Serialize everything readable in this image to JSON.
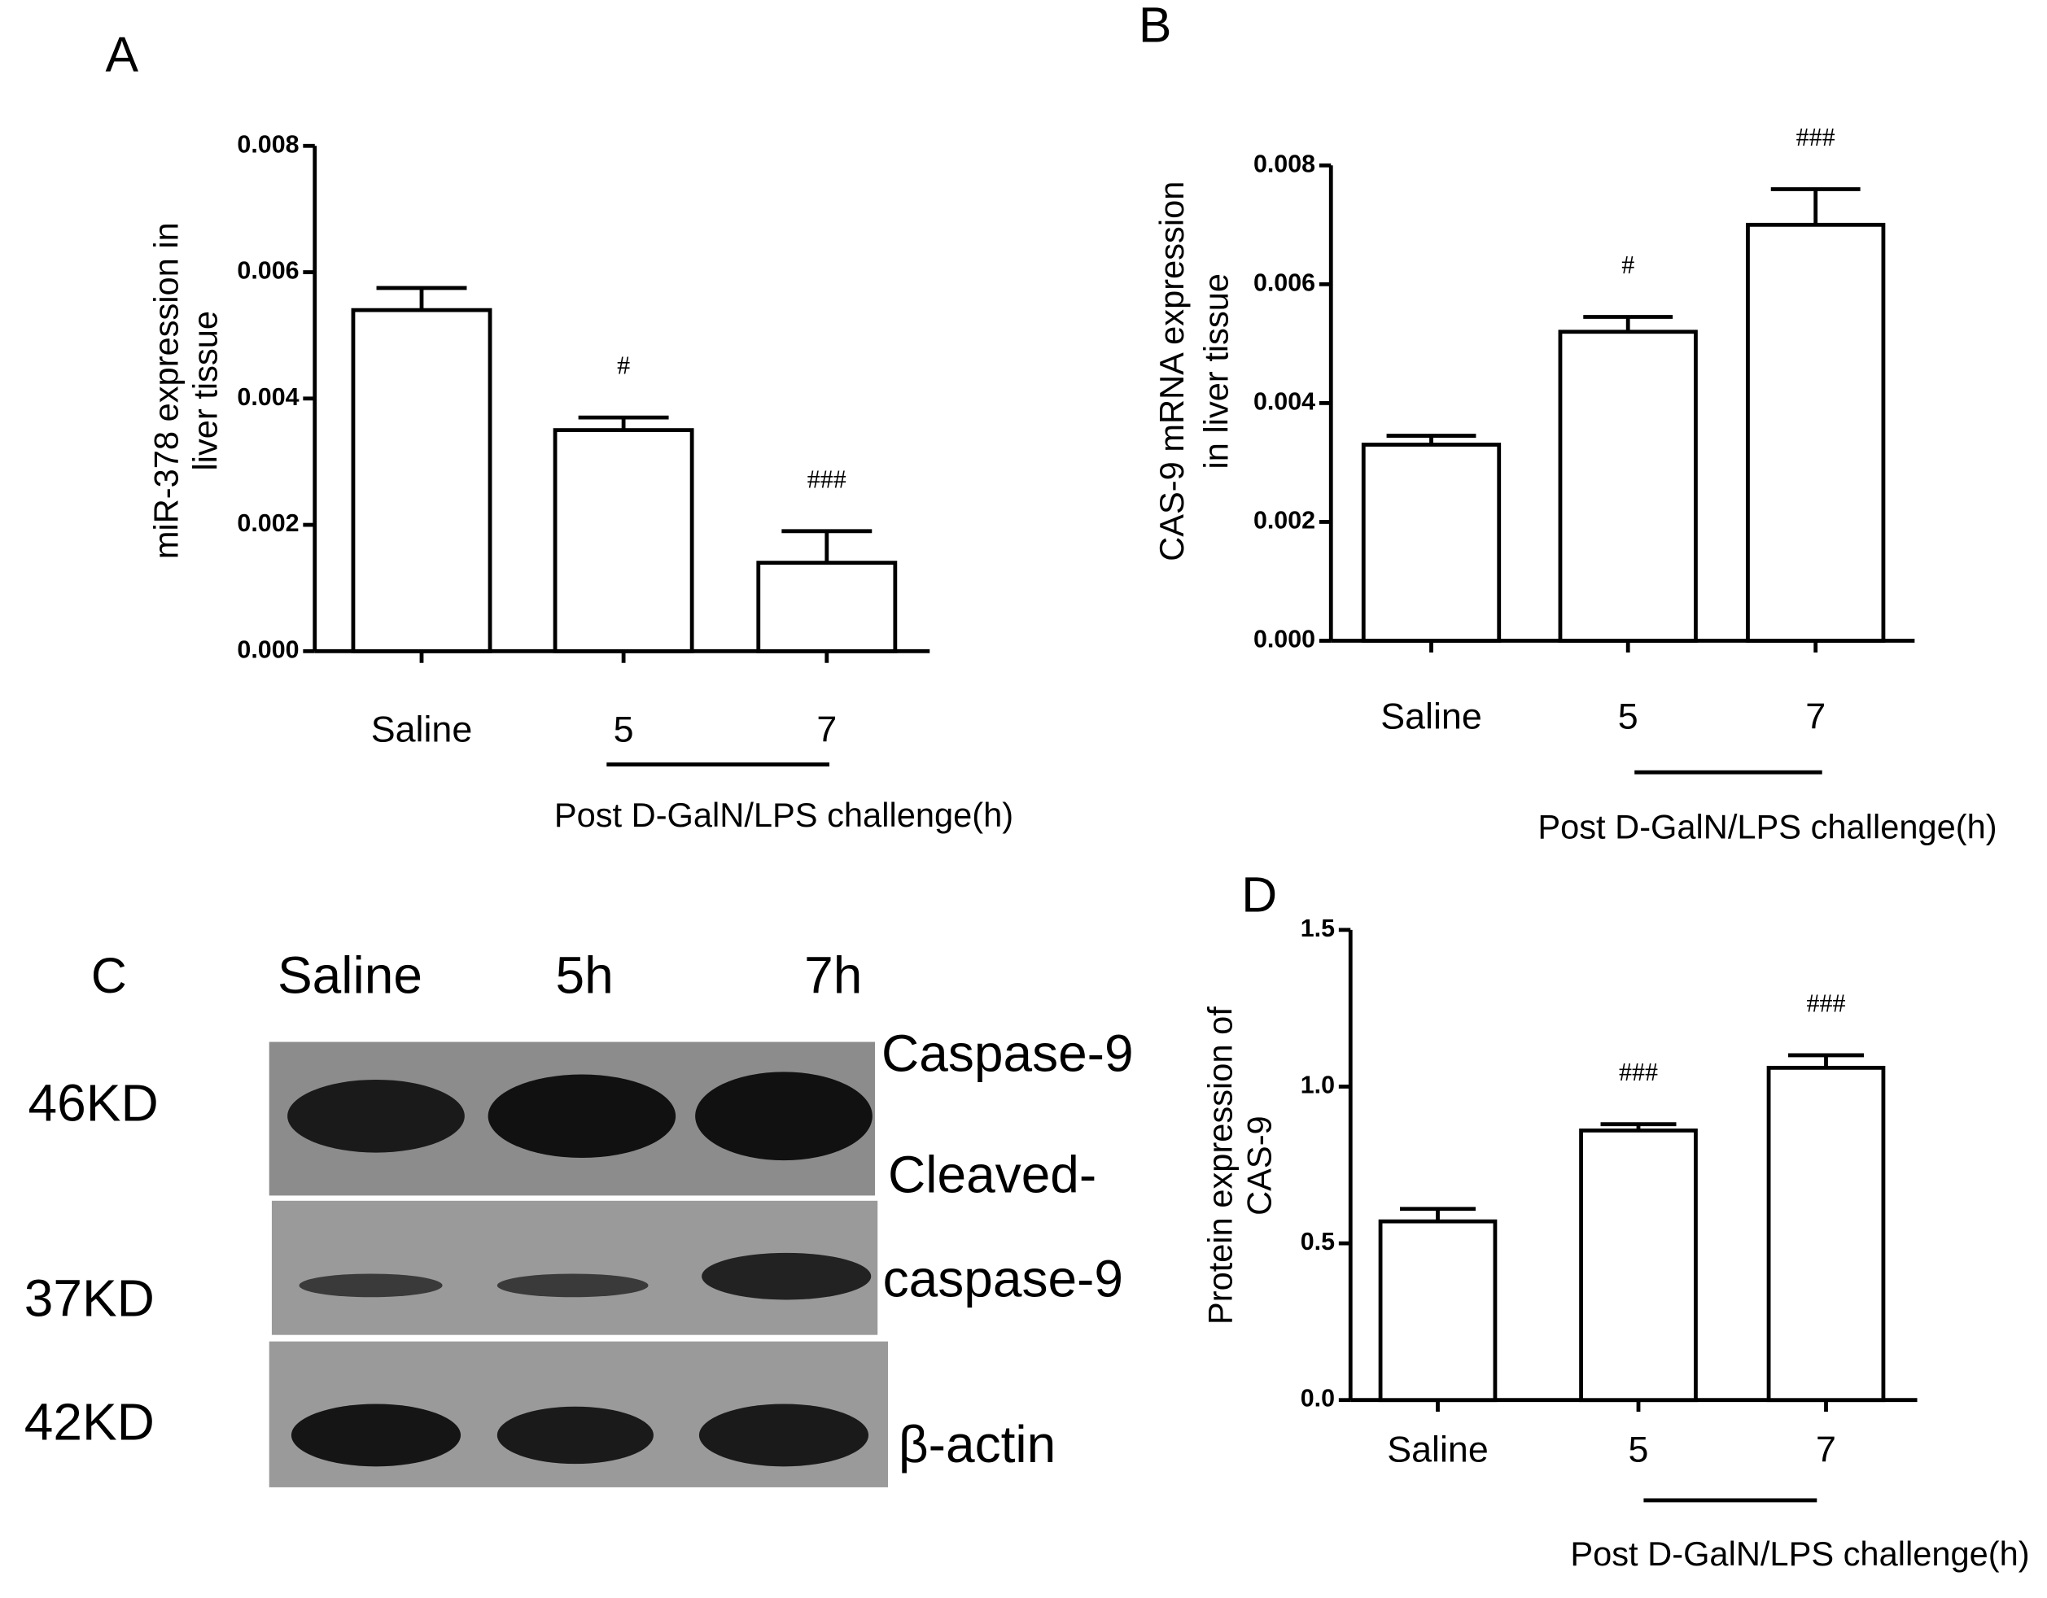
{
  "chart_data": [
    {
      "type": "bar",
      "panel": "A",
      "ylabel": [
        "miR-378 expression in",
        "liver tissue"
      ],
      "xlabel": "Post D-GalN/LPS challenge(h)",
      "categories": [
        "Saline",
        "5",
        "7"
      ],
      "values": [
        0.0054,
        0.0035,
        0.0014
      ],
      "errors": [
        0.00035,
        0.0002,
        0.0005
      ],
      "annotations": [
        null,
        "#",
        "###"
      ],
      "color": "#ffffff",
      "ylim": [
        0,
        0.008
      ],
      "yticks": [
        {
          "value": 0,
          "label": "0.000"
        },
        {
          "value": 0.002,
          "label": "0.002"
        },
        {
          "value": 0.004,
          "label": "0.004"
        },
        {
          "value": 0.006,
          "label": "0.006"
        },
        {
          "value": 0.008,
          "label": "0.008"
        }
      ]
    },
    {
      "type": "bar",
      "panel": "B",
      "ylabel": [
        "CAS-9 mRNA expression",
        "in liver tissue"
      ],
      "xlabel": "Post D-GalN/LPS challenge(h)",
      "categories": [
        "Saline",
        "5",
        "7"
      ],
      "values": [
        0.0033,
        0.0052,
        0.007
      ],
      "errors": [
        0.00015,
        0.00025,
        0.0006
      ],
      "annotations": [
        null,
        "#",
        "###"
      ],
      "color": "#ffffff",
      "ylim": [
        0,
        0.008
      ],
      "yticks": [
        {
          "value": 0,
          "label": "0.000"
        },
        {
          "value": 0.002,
          "label": "0.002"
        },
        {
          "value": 0.004,
          "label": "0.004"
        },
        {
          "value": 0.006,
          "label": "0.006"
        },
        {
          "value": 0.008,
          "label": "0.008"
        }
      ]
    },
    {
      "type": "bar",
      "panel": "D",
      "ylabel": [
        "Protein expression of",
        "CAS-9"
      ],
      "xlabel": "Post D-GalN/LPS challenge(h)",
      "categories": [
        "Saline",
        "5",
        "7"
      ],
      "values": [
        0.57,
        0.86,
        1.06
      ],
      "errors": [
        0.04,
        0.02,
        0.04
      ],
      "annotations": [
        null,
        "###",
        "###"
      ],
      "color": "#ffffff",
      "ylim": [
        0,
        1.5
      ],
      "yticks": [
        {
          "value": 0,
          "label": "0.0"
        },
        {
          "value": 0.5,
          "label": "0.5"
        },
        {
          "value": 1,
          "label": "1.0"
        },
        {
          "value": 1.5,
          "label": "1.5"
        }
      ]
    }
  ],
  "blot": {
    "panel": "C",
    "lanes": [
      "Saline",
      "5h",
      "7h"
    ],
    "markers": [
      "46KD",
      "37KD",
      "42KD"
    ],
    "labels": [
      "Caspase-9",
      "Cleaved-",
      "caspase-9",
      "β-actin"
    ]
  }
}
